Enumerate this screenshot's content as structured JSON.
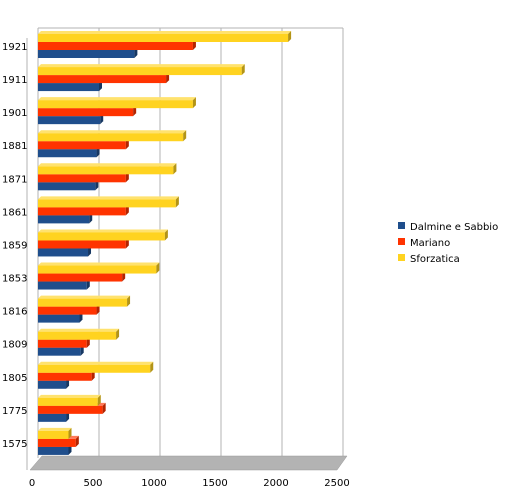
{
  "chart_data": {
    "type": "bar",
    "orientation": "horizontal",
    "categories": [
      "1921",
      "1911",
      "1901",
      "1881",
      "1871",
      "1861",
      "1859",
      "1853",
      "1816",
      "1809",
      "1805",
      "1775",
      "1575"
    ],
    "series": [
      {
        "name": "Dalmine e Sabbio",
        "color": "#1f4e8c",
        "values": [
          790,
          500,
          510,
          480,
          470,
          420,
          410,
          400,
          340,
          350,
          230,
          230,
          250
        ]
      },
      {
        "name": "Mariano",
        "color": "#ff3300",
        "values": [
          1270,
          1050,
          780,
          720,
          720,
          720,
          720,
          690,
          480,
          400,
          440,
          530,
          310
        ]
      },
      {
        "name": "Sforzatica",
        "color": "#ffd320",
        "values": [
          2050,
          1670,
          1270,
          1190,
          1110,
          1130,
          1040,
          970,
          730,
          640,
          920,
          490,
          250
        ]
      }
    ],
    "xticks": [
      "0",
      "500",
      "1000",
      "1500",
      "2000",
      "2500"
    ],
    "xlim": [
      0,
      2500
    ],
    "grid": true,
    "legend": "right",
    "title": "",
    "xlabel": "",
    "ylabel": ""
  }
}
